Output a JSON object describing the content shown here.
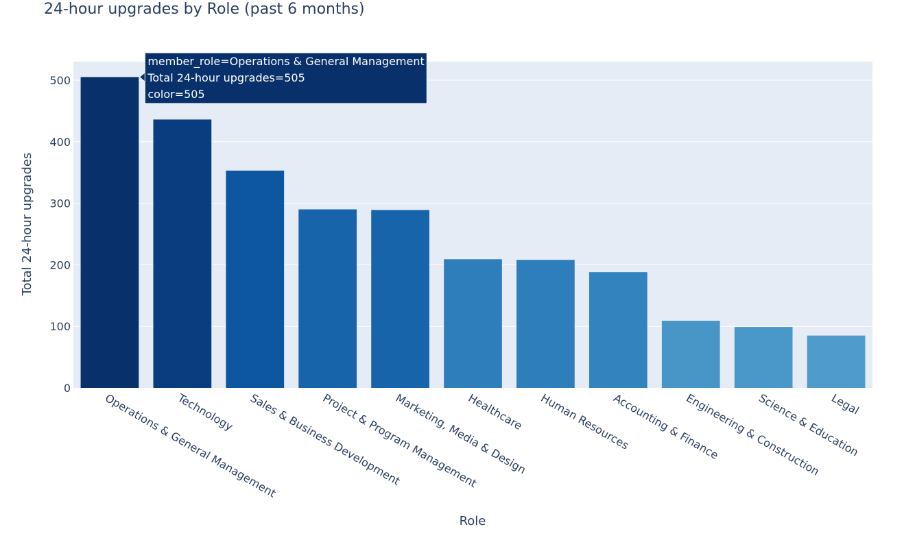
{
  "chart_data": {
    "type": "bar",
    "title": "24-hour upgrades by Role (past 6 months)",
    "xlabel": "Role",
    "ylabel": "Total 24-hour upgrades",
    "categories": [
      "Operations & General Management",
      "Technology",
      "Sales & Business Development",
      "Project & Program Management",
      "Marketing, Media & Design",
      "Healthcare",
      "Human Resources",
      "Accounting & Finance",
      "Engineering & Construction",
      "Science & Education",
      "Legal"
    ],
    "values": [
      505,
      436,
      353,
      290,
      289,
      209,
      208,
      188,
      109,
      99,
      85
    ],
    "ylim": [
      0,
      530
    ],
    "yticks": [
      0,
      100,
      200,
      300,
      400,
      500
    ],
    "grid": true,
    "colorscale": "Blues",
    "bar_colors": [
      "#08306b",
      "#083d7f",
      "#0d56a0",
      "#1764ab",
      "#1764ab",
      "#2f7ebc",
      "#2f7ebc",
      "#3383be",
      "#4896c8",
      "#4a98c9",
      "#4f9bcb"
    ],
    "plot_background": "#e5ecf6",
    "tooltip": {
      "lines": [
        "member_role=Operations & General Management",
        "Total 24-hour upgrades=505",
        "color=505"
      ],
      "background": "#08306b"
    }
  }
}
